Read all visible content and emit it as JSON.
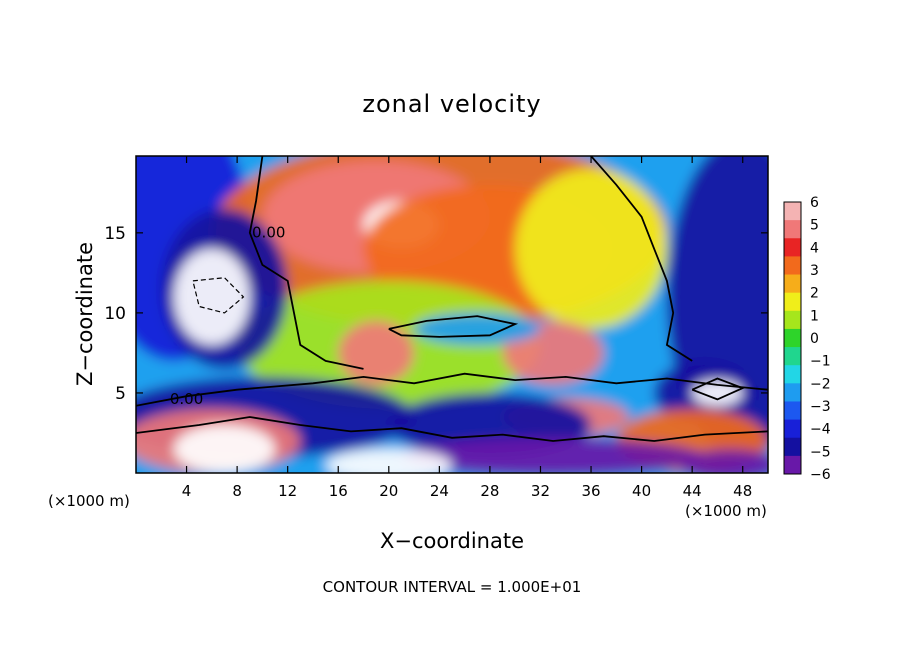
{
  "chart_data": {
    "type": "heatmap",
    "title": "zonal velocity",
    "xlabel": "X−coordinate",
    "ylabel": "Z−coordinate",
    "x_unit_left": "(×1000 m)",
    "x_unit_right": "(×1000 m)",
    "footer": "CONTOUR INTERVAL = 1.000E+01",
    "xlim": [
      0,
      50
    ],
    "ylim": [
      0,
      19.8
    ],
    "x_ticks": [
      4,
      8,
      12,
      16,
      20,
      24,
      28,
      32,
      36,
      40,
      44,
      48
    ],
    "y_ticks": [
      5,
      10,
      15
    ],
    "contour_labels": [
      {
        "text": "0.00",
        "x": 10.5,
        "y": 14.7
      },
      {
        "text": "0.00",
        "x": 4,
        "y": 4.3
      }
    ],
    "colorbar": {
      "min": -6,
      "max": 6,
      "ticks": [
        6,
        5,
        4,
        3,
        2,
        1,
        0,
        -1,
        -2,
        -3,
        -4,
        -5,
        -6
      ],
      "colors": [
        "#f4b3b3",
        "#f07878",
        "#e82424",
        "#f26a1c",
        "#f6ad1a",
        "#f0ee1a",
        "#a6e61c",
        "#2ed42a",
        "#20d68e",
        "#22d6e6",
        "#1e9cf0",
        "#1c58f0",
        "#1820d8",
        "#1410a0",
        "#6818a8"
      ]
    },
    "field_regions": [
      {
        "x": 25,
        "y": 10,
        "rx": 40,
        "ry": 20,
        "v": -2.5
      },
      {
        "x": 3,
        "y": 15,
        "rx": 6,
        "ry": 8,
        "v": -4
      },
      {
        "x": 48,
        "y": 11,
        "rx": 6,
        "ry": 10,
        "v": -4.5
      },
      {
        "x": 24,
        "y": 15,
        "rx": 18,
        "ry": 6,
        "v": 3
      },
      {
        "x": 19,
        "y": 16,
        "rx": 9,
        "ry": 3.5,
        "v": 4.5
      },
      {
        "x": 21,
        "y": 15.5,
        "rx": 3,
        "ry": 1.5,
        "v": 7
      },
      {
        "x": 28,
        "y": 14,
        "rx": 10,
        "ry": 4,
        "v": 3.5
      },
      {
        "x": 36,
        "y": 14,
        "rx": 6,
        "ry": 5,
        "v": 1.5
      },
      {
        "x": 20,
        "y": 8,
        "rx": 12,
        "ry": 4,
        "v": 1
      },
      {
        "x": 19,
        "y": 7.5,
        "rx": 3,
        "ry": 2,
        "v": 4.5
      },
      {
        "x": 33,
        "y": 7.5,
        "rx": 4,
        "ry": 2,
        "v": 4.5
      },
      {
        "x": 34,
        "y": 3.5,
        "rx": 5,
        "ry": 1.2,
        "v": 5
      },
      {
        "x": 27,
        "y": 9,
        "rx": 5,
        "ry": 1,
        "v": -2
      },
      {
        "x": 7,
        "y": 11.5,
        "rx": 5,
        "ry": 5,
        "v": -5
      },
      {
        "x": 6,
        "y": 11,
        "rx": 3,
        "ry": 3,
        "v": -8
      },
      {
        "x": 10,
        "y": 3.5,
        "rx": 12,
        "ry": 2.5,
        "v": -5
      },
      {
        "x": 28,
        "y": 3,
        "rx": 8,
        "ry": 2,
        "v": -4.5
      },
      {
        "x": 6,
        "y": 2,
        "rx": 7,
        "ry": 2,
        "v": 5
      },
      {
        "x": 7,
        "y": 1.5,
        "rx": 4,
        "ry": 1.5,
        "v": 8
      },
      {
        "x": 45,
        "y": 5,
        "rx": 4,
        "ry": 2,
        "v": -5
      },
      {
        "x": 46,
        "y": 5,
        "rx": 2,
        "ry": 0.8,
        "v": -7
      },
      {
        "x": 44,
        "y": 2,
        "rx": 6,
        "ry": 2,
        "v": 3
      },
      {
        "x": 33,
        "y": 1,
        "rx": 12,
        "ry": 1.2,
        "v": -6
      },
      {
        "x": 20,
        "y": 0.5,
        "rx": 5,
        "ry": 1,
        "v": -7
      },
      {
        "x": 47,
        "y": 0.5,
        "rx": 4,
        "ry": 1,
        "v": -6
      }
    ]
  }
}
